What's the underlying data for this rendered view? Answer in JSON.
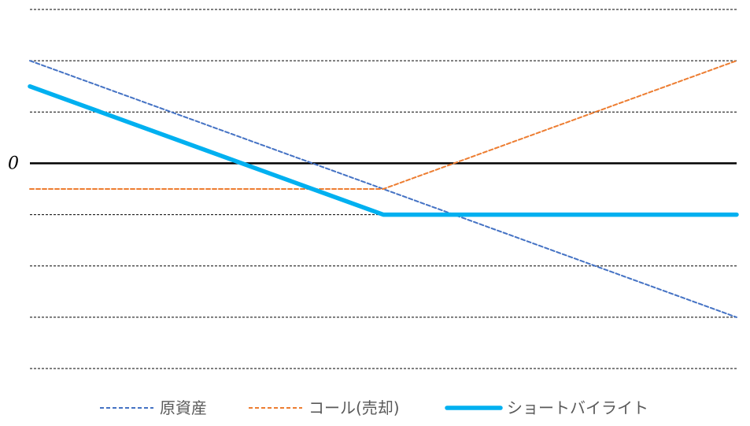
{
  "chart_data": {
    "type": "line",
    "title": "",
    "xlabel": "",
    "ylabel": "",
    "xlim": [
      0,
      100
    ],
    "ylim": [
      -4,
      3
    ],
    "grid": true,
    "grid_style": "dashed",
    "zero_line_label": "0",
    "legend_position": "bottom",
    "series": [
      {
        "name": "原資産",
        "color": "#4472C4",
        "line_style": "dashed",
        "x": [
          0,
          100
        ],
        "y": [
          2,
          -3
        ]
      },
      {
        "name": "コール(売却)",
        "color": "#ED7D31",
        "line_style": "dashed",
        "x": [
          0,
          50,
          100
        ],
        "y": [
          -0.5,
          -0.5,
          2
        ]
      },
      {
        "name": "ショートバイライト",
        "color": "#00B0F0",
        "line_style": "solid",
        "x": [
          0,
          50,
          100
        ],
        "y": [
          1.5,
          -1,
          -1
        ]
      }
    ]
  }
}
